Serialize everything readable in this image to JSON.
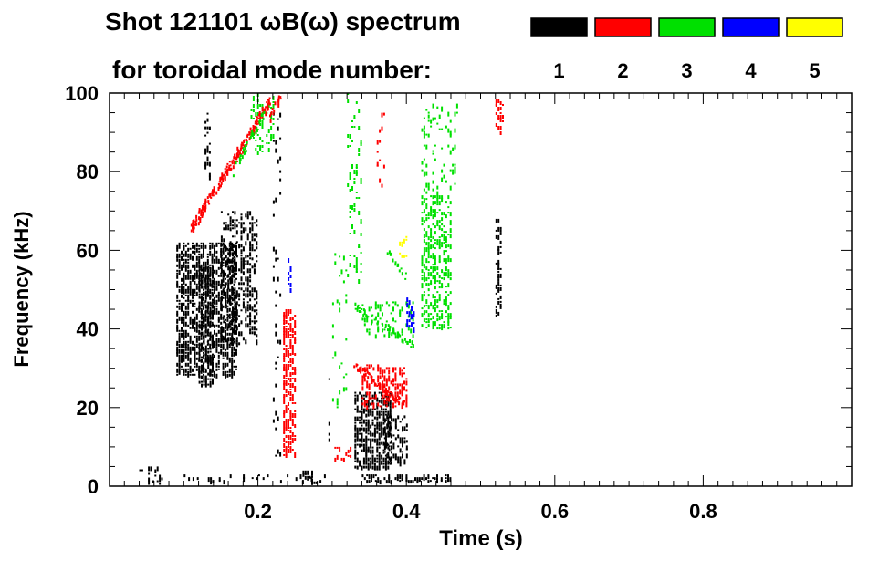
{
  "chart_data": {
    "type": "heatmap",
    "title_line1": "Shot 121101 ωB(ω) spectrum",
    "title_line2": "for toroidal mode number:",
    "xlabel": "Time (s)",
    "ylabel": "Frequency (kHz)",
    "xlim": [
      0.0,
      1.0
    ],
    "ylim": [
      0,
      100
    ],
    "x_ticks": [
      0.2,
      0.4,
      0.6,
      0.8
    ],
    "x_tick_labels": [
      "0.2",
      "0.4",
      "0.6",
      "0.8"
    ],
    "y_ticks": [
      0,
      20,
      40,
      60,
      80,
      100
    ],
    "y_tick_labels": [
      "0",
      "20",
      "40",
      "60",
      "80",
      "100"
    ],
    "grid": false,
    "legend_placement": "top-right",
    "modes": [
      {
        "n": 1,
        "label": "1",
        "color": "#000000"
      },
      {
        "n": 2,
        "label": "2",
        "color": "#ff0000"
      },
      {
        "n": 3,
        "label": "3",
        "color": "#00e000"
      },
      {
        "n": 4,
        "label": "4",
        "color": "#0000ff"
      },
      {
        "n": 5,
        "label": "5",
        "color": "#ffff00"
      }
    ],
    "regions": [
      {
        "mode": 1,
        "t": [
          0.09,
          0.17
        ],
        "f": [
          28,
          62
        ],
        "density": 0.55
      },
      {
        "mode": 1,
        "t": [
          0.15,
          0.2
        ],
        "f": [
          36,
          70
        ],
        "density": 0.35
      },
      {
        "mode": 1,
        "t": [
          0.12,
          0.14
        ],
        "f": [
          26,
          56
        ],
        "density": 0.6
      },
      {
        "mode": 1,
        "t": [
          0.128,
          0.135
        ],
        "f": [
          78,
          95
        ],
        "density": 0.4
      },
      {
        "mode": 1,
        "t": [
          0.04,
          0.07
        ],
        "f": [
          0,
          5
        ],
        "density": 0.35
      },
      {
        "mode": 1,
        "t": [
          0.1,
          0.3
        ],
        "f": [
          1,
          3
        ],
        "density": 0.18
      },
      {
        "mode": 1,
        "t": [
          0.26,
          0.28
        ],
        "f": [
          1,
          4
        ],
        "density": 0.55
      },
      {
        "mode": 1,
        "t": [
          0.33,
          0.38
        ],
        "f": [
          5,
          24
        ],
        "density": 0.6
      },
      {
        "mode": 1,
        "t": [
          0.37,
          0.4
        ],
        "f": [
          6,
          18
        ],
        "density": 0.4
      },
      {
        "mode": 1,
        "t": [
          0.34,
          0.46
        ],
        "f": [
          1,
          3
        ],
        "density": 0.55
      },
      {
        "mode": 1,
        "t": [
          0.52,
          0.528
        ],
        "f": [
          43,
          68
        ],
        "density": 0.45
      },
      {
        "mode": 1,
        "t": [
          0.22,
          0.23
        ],
        "f": [
          5,
          95
        ],
        "density": 0.08
      },
      {
        "mode": 1,
        "t": [
          0.295,
          0.3
        ],
        "f": [
          10,
          40
        ],
        "density": 0.1
      },
      {
        "mode": 2,
        "t": [
          0.303,
          0.325
        ],
        "f": [
          7,
          10
        ],
        "density": 0.45
      },
      {
        "mode": 2,
        "t": [
          0.234,
          0.25
        ],
        "f": [
          8,
          45
        ],
        "density": 0.55
      },
      {
        "mode": 2,
        "t": [
          0.34,
          0.4
        ],
        "f": [
          20,
          31
        ],
        "density": 0.35
      },
      {
        "mode": 2,
        "t": [
          0.52,
          0.53
        ],
        "f": [
          90,
          100
        ],
        "density": 0.3
      },
      {
        "mode": 2,
        "t": [
          0.36,
          0.37
        ],
        "f": [
          75,
          95
        ],
        "density": 0.12
      },
      {
        "mode": 3,
        "t": [
          0.42,
          0.46
        ],
        "f": [
          40,
          74
        ],
        "density": 0.4
      },
      {
        "mode": 3,
        "t": [
          0.42,
          0.47
        ],
        "f": [
          75,
          98
        ],
        "density": 0.12
      },
      {
        "mode": 3,
        "t": [
          0.32,
          0.34
        ],
        "f": [
          50,
          100
        ],
        "density": 0.12
      },
      {
        "mode": 3,
        "t": [
          0.34,
          0.41
        ],
        "f": [
          38,
          47
        ],
        "density": 0.2
      },
      {
        "mode": 3,
        "t": [
          0.19,
          0.22
        ],
        "f": [
          85,
          100
        ],
        "density": 0.2
      },
      {
        "mode": 3,
        "t": [
          0.3,
          0.32
        ],
        "f": [
          20,
          60
        ],
        "density": 0.06
      },
      {
        "mode": 4,
        "t": [
          0.24,
          0.245
        ],
        "f": [
          50,
          58
        ],
        "density": 0.6
      },
      {
        "mode": 4,
        "t": [
          0.4,
          0.41
        ],
        "f": [
          39,
          48
        ],
        "density": 0.4
      },
      {
        "mode": 5,
        "t": [
          0.39,
          0.4
        ],
        "f": [
          57,
          65
        ],
        "density": 0.25
      }
    ],
    "ridges": [
      {
        "mode": 2,
        "t": [
          0.11,
          0.215
        ],
        "f": [
          66,
          98
        ],
        "width": 5,
        "density": 0.55
      },
      {
        "mode": 2,
        "t": [
          0.215,
          0.23
        ],
        "f": [
          94,
          100
        ],
        "width": 3,
        "density": 0.5
      },
      {
        "mode": 3,
        "t": [
          0.165,
          0.21
        ],
        "f": [
          80,
          96
        ],
        "width": 3,
        "density": 0.35
      },
      {
        "mode": 2,
        "t": [
          0.33,
          0.395
        ],
        "f": [
          31,
          21
        ],
        "width": 3,
        "density": 0.55
      },
      {
        "mode": 3,
        "t": [
          0.33,
          0.41
        ],
        "f": [
          46,
          36
        ],
        "width": 3,
        "density": 0.3
      },
      {
        "mode": 3,
        "t": [
          0.375,
          0.4
        ],
        "f": [
          60,
          53
        ],
        "width": 2,
        "density": 0.3
      }
    ]
  }
}
